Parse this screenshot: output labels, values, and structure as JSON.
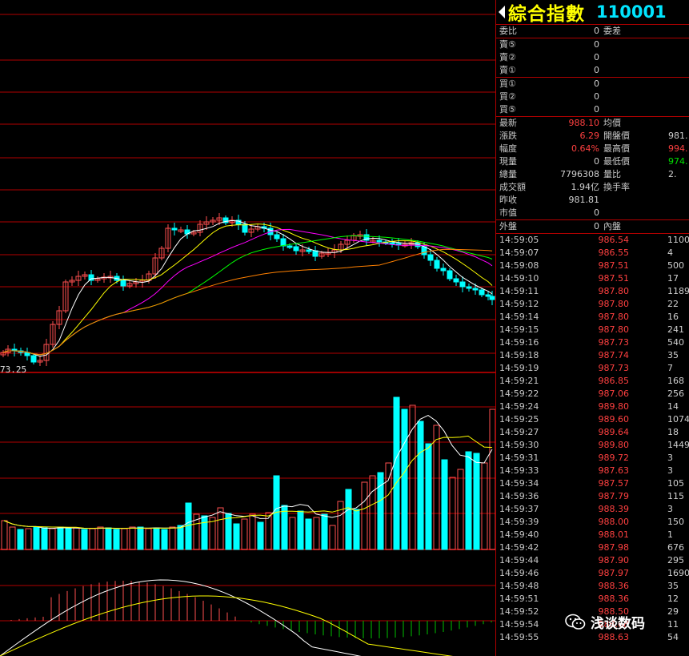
{
  "header": {
    "name": "綜合指數",
    "code": "110001"
  },
  "chart": {
    "price_low_label": "73.25",
    "colors": {
      "up": "#ff5050",
      "down": "#00ffff",
      "ma5": "#ffffff",
      "ma10": "#ffff00",
      "ma20": "#ff00ff",
      "ma30": "#00ff00",
      "ma60": "#ff8000",
      "grid": "#b00000"
    }
  },
  "quote": {
    "order_ratio": {
      "label": "委比",
      "value": "0",
      "diff_label": "委差"
    },
    "asks": [
      {
        "label": "賣⑤",
        "value": "0"
      },
      {
        "label": "賣②",
        "value": "0"
      },
      {
        "label": "賣①",
        "value": "0"
      }
    ],
    "bids": [
      {
        "label": "買①",
        "value": "0"
      },
      {
        "label": "買②",
        "value": "0"
      },
      {
        "label": "買⑤",
        "value": "0"
      }
    ],
    "stats": [
      {
        "l1": "最新",
        "v1": "988.10",
        "c1": "red",
        "l2": "均價",
        "v2": "",
        "c2": "wht"
      },
      {
        "l1": "漲跌",
        "v1": "6.29",
        "c1": "red",
        "l2": "開盤價",
        "v2": "981.",
        "c2": "wht"
      },
      {
        "l1": "幅度",
        "v1": "0.64%",
        "c1": "red",
        "l2": "最高價",
        "v2": "994.",
        "c2": "red"
      },
      {
        "l1": "現量",
        "v1": "0",
        "c1": "wht",
        "l2": "最低價",
        "v2": "974.",
        "c2": "grn"
      },
      {
        "l1": "總量",
        "v1": "7796308",
        "c1": "wht",
        "l2": "量比",
        "v2": "2.",
        "c2": "wht"
      },
      {
        "l1": "成交額",
        "v1": "1.94亿",
        "c1": "wht",
        "l2": "換手率",
        "v2": "",
        "c2": "wht"
      },
      {
        "l1": "昨收",
        "v1": "981.81",
        "c1": "wht",
        "l2": "",
        "v2": "",
        "c2": "wht"
      },
      {
        "l1": "市值",
        "v1": "0",
        "c1": "wht",
        "l2": "",
        "v2": "",
        "c2": "wht"
      }
    ],
    "outer": {
      "label": "外盤",
      "value": "0",
      "inner_label": "內盤"
    }
  },
  "ticks": [
    {
      "t": "14:59:05",
      "p": "986.54",
      "v": "1100"
    },
    {
      "t": "14:59:07",
      "p": "986.55",
      "v": "4"
    },
    {
      "t": "14:59:08",
      "p": "987.51",
      "v": "500"
    },
    {
      "t": "14:59:10",
      "p": "987.51",
      "v": "17"
    },
    {
      "t": "14:59:11",
      "p": "987.80",
      "v": "1189"
    },
    {
      "t": "14:59:12",
      "p": "987.80",
      "v": "22"
    },
    {
      "t": "14:59:14",
      "p": "987.80",
      "v": "16"
    },
    {
      "t": "14:59:15",
      "p": "987.80",
      "v": "241"
    },
    {
      "t": "14:59:16",
      "p": "987.73",
      "v": "540"
    },
    {
      "t": "14:59:18",
      "p": "987.74",
      "v": "35"
    },
    {
      "t": "14:59:19",
      "p": "987.73",
      "v": "7"
    },
    {
      "t": "14:59:21",
      "p": "986.85",
      "v": "168"
    },
    {
      "t": "14:59:22",
      "p": "987.06",
      "v": "256"
    },
    {
      "t": "14:59:24",
      "p": "989.80",
      "v": "14"
    },
    {
      "t": "14:59:25",
      "p": "989.60",
      "v": "1074"
    },
    {
      "t": "14:59:27",
      "p": "989.64",
      "v": "18"
    },
    {
      "t": "14:59:30",
      "p": "989.80",
      "v": "1449"
    },
    {
      "t": "14:59:31",
      "p": "989.72",
      "v": "3"
    },
    {
      "t": "14:59:33",
      "p": "987.63",
      "v": "3"
    },
    {
      "t": "14:59:34",
      "p": "987.57",
      "v": "105"
    },
    {
      "t": "14:59:36",
      "p": "987.79",
      "v": "115"
    },
    {
      "t": "14:59:37",
      "p": "988.39",
      "v": "3"
    },
    {
      "t": "14:59:39",
      "p": "988.00",
      "v": "150"
    },
    {
      "t": "14:59:40",
      "p": "988.01",
      "v": "1"
    },
    {
      "t": "14:59:42",
      "p": "987.98",
      "v": "676"
    },
    {
      "t": "14:59:44",
      "p": "987.90",
      "v": "295"
    },
    {
      "t": "14:59:46",
      "p": "987.97",
      "v": "1690"
    },
    {
      "t": "14:59:48",
      "p": "988.36",
      "v": "35"
    },
    {
      "t": "14:59:51",
      "p": "988.36",
      "v": "12"
    },
    {
      "t": "14:59:52",
      "p": "988.50",
      "v": "29"
    },
    {
      "t": "14:59:54",
      "p": "988.68",
      "v": "11"
    },
    {
      "t": "14:59:55",
      "p": "988.63",
      "v": "54"
    }
  ],
  "watermark": {
    "text": "浅谈数码",
    "icon": "wechat-icon"
  }
}
